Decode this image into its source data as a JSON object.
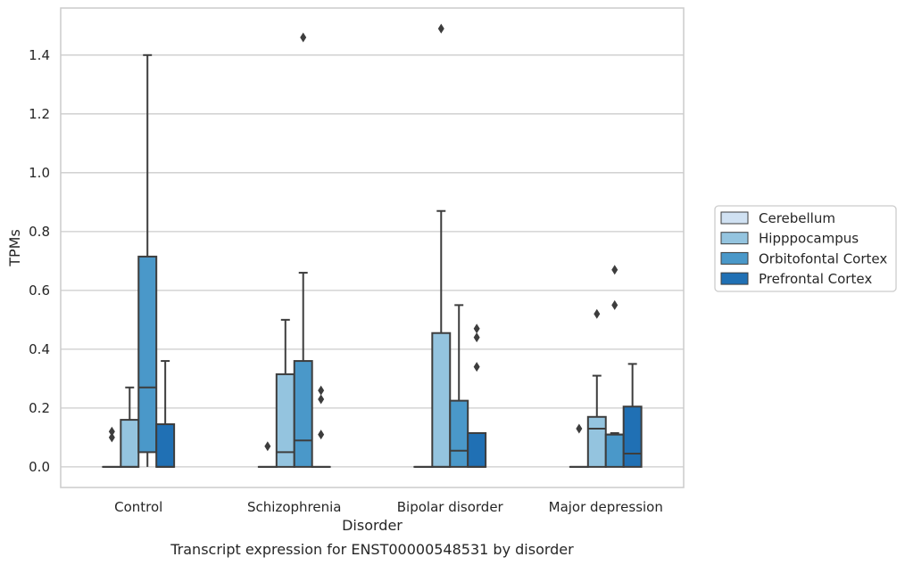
{
  "chart_data": {
    "type": "box",
    "caption": "Transcript expression for ENST00000548531 by disorder",
    "xlabel": "Disorder",
    "ylabel": "TPMs",
    "categories": [
      "Control",
      "Schizophrenia",
      "Bipolar disorder",
      "Major depression"
    ],
    "ylim": [
      -0.07,
      1.56
    ],
    "yticks": [
      "0.0",
      "0.2",
      "0.4",
      "0.6",
      "0.8",
      "1.0",
      "1.2",
      "1.4"
    ],
    "ytick_values": [
      0.0,
      0.2,
      0.4,
      0.6,
      0.8,
      1.0,
      1.2,
      1.4
    ],
    "grid": "horizontal",
    "legend_position": "right",
    "series": [
      {
        "name": "Cerebellum",
        "color": "#d0e1f2",
        "boxes": [
          {
            "q1": 0,
            "median": 0,
            "q3": 0,
            "whisker_low": 0,
            "whisker_high": 0,
            "outliers": [
              0.1,
              0.12
            ]
          },
          {
            "q1": 0,
            "median": 0,
            "q3": 0,
            "whisker_low": 0,
            "whisker_high": 0,
            "outliers": [
              0.07
            ]
          },
          {
            "q1": 0,
            "median": 0,
            "q3": 0,
            "whisker_low": 0,
            "whisker_high": 0,
            "outliers": []
          },
          {
            "q1": 0,
            "median": 0,
            "q3": 0,
            "whisker_low": 0,
            "whisker_high": 0,
            "outliers": [
              0.13
            ]
          }
        ]
      },
      {
        "name": "Hipppocampus",
        "color": "#94c4df",
        "boxes": [
          {
            "q1": 0,
            "median": 0,
            "q3": 0.16,
            "whisker_low": 0,
            "whisker_high": 0.27,
            "outliers": []
          },
          {
            "q1": 0,
            "median": 0.05,
            "q3": 0.315,
            "whisker_low": 0,
            "whisker_high": 0.5,
            "outliers": []
          },
          {
            "q1": 0,
            "median": 0,
            "q3": 0.455,
            "whisker_low": 0,
            "whisker_high": 0.87,
            "outliers": [
              1.49
            ]
          },
          {
            "q1": 0,
            "median": 0.13,
            "q3": 0.17,
            "whisker_low": 0,
            "whisker_high": 0.31,
            "outliers": [
              0.52
            ]
          }
        ]
      },
      {
        "name": "Orbitofontal Cortex",
        "color": "#4a98c9",
        "boxes": [
          {
            "q1": 0.05,
            "median": 0.27,
            "q3": 0.715,
            "whisker_low": 0,
            "whisker_high": 1.4,
            "outliers": []
          },
          {
            "q1": 0,
            "median": 0.09,
            "q3": 0.36,
            "whisker_low": 0,
            "whisker_high": 0.66,
            "outliers": [
              1.46
            ]
          },
          {
            "q1": 0,
            "median": 0.055,
            "q3": 0.225,
            "whisker_low": 0,
            "whisker_high": 0.55,
            "outliers": []
          },
          {
            "q1": 0,
            "median": 0.11,
            "q3": 0.11,
            "whisker_low": 0,
            "whisker_high": 0.115,
            "outliers": [
              0.55,
              0.67
            ]
          }
        ]
      },
      {
        "name": "Prefrontal Cortex",
        "color": "#2070b4",
        "boxes": [
          {
            "q1": 0,
            "median": 0,
            "q3": 0.145,
            "whisker_low": 0,
            "whisker_high": 0.36,
            "outliers": []
          },
          {
            "q1": 0,
            "median": 0,
            "q3": 0,
            "whisker_low": 0,
            "whisker_high": 0,
            "outliers": [
              0.11,
              0.23,
              0.26
            ]
          },
          {
            "q1": 0,
            "median": 0,
            "q3": 0.115,
            "whisker_low": 0,
            "whisker_high": 0.115,
            "outliers": [
              0.34,
              0.44,
              0.47
            ]
          },
          {
            "q1": 0,
            "median": 0.045,
            "q3": 0.205,
            "whisker_low": 0,
            "whisker_high": 0.35,
            "outliers": []
          }
        ]
      }
    ]
  }
}
